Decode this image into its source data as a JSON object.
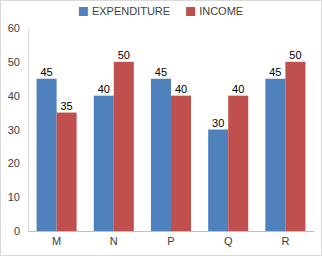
{
  "chart_data": {
    "type": "bar",
    "categories": [
      "M",
      "N",
      "P",
      "Q",
      "R"
    ],
    "series": [
      {
        "name": "EXPENDITURE",
        "color": "#4f81bd",
        "values": [
          45,
          40,
          45,
          30,
          45
        ]
      },
      {
        "name": "INCOME",
        "color": "#c0504d",
        "values": [
          35,
          50,
          40,
          40,
          50
        ]
      }
    ],
    "ylim": [
      0,
      60
    ],
    "yticks": [
      0,
      10,
      20,
      30,
      40,
      50,
      60
    ],
    "grid": false,
    "legend": "top",
    "data_labels": true
  }
}
